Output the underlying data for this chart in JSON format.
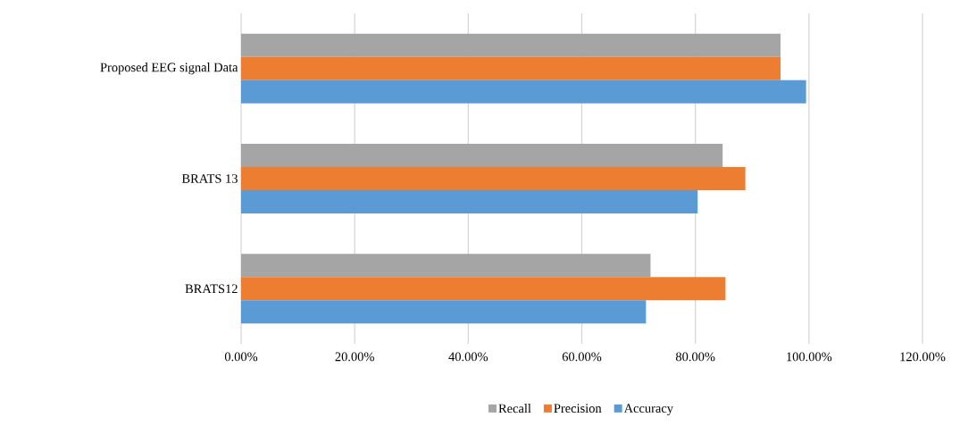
{
  "chart_data": {
    "type": "bar",
    "orientation": "horizontal",
    "categories": [
      "Proposed EEG signal Data",
      "BRATS 13",
      "BRATS12"
    ],
    "series": [
      {
        "name": "Recall",
        "color": "#a5a5a5",
        "values": [
          95.0,
          84.8,
          72.1
        ]
      },
      {
        "name": "Precision",
        "color": "#ed7d31",
        "values": [
          95.0,
          88.8,
          85.3
        ]
      },
      {
        "name": "Accuracy",
        "color": "#5b9bd5",
        "values": [
          99.5,
          80.4,
          71.3
        ]
      }
    ],
    "xlim": [
      0,
      120
    ],
    "xticks": [
      {
        "value": 0,
        "label": "0.00%"
      },
      {
        "value": 20,
        "label": "20.00%"
      },
      {
        "value": 40,
        "label": "40.00%"
      },
      {
        "value": 60,
        "label": "60.00%"
      },
      {
        "value": 80,
        "label": "80.00%"
      },
      {
        "value": 100,
        "label": "100.00%"
      },
      {
        "value": 120,
        "label": "120.00%"
      }
    ],
    "grid": "x",
    "legend": "bottom"
  }
}
